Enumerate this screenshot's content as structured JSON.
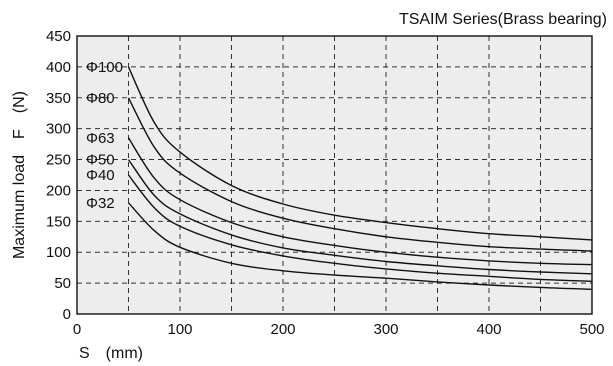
{
  "chart_data": {
    "type": "line",
    "title": "TSAIM Series(Brass bearing)",
    "xlabel": "S　(mm)",
    "ylabel": "Maximum load　F　(N)",
    "xlim": [
      0,
      500
    ],
    "ylim": [
      0,
      450
    ],
    "x_ticks": [
      "0",
      "100",
      "200",
      "300",
      "400",
      "500"
    ],
    "y_ticks": [
      "0",
      "50",
      "100",
      "150",
      "200",
      "250",
      "300",
      "350",
      "400",
      "450"
    ],
    "grid": true,
    "plot_background": "#ededed",
    "line_color": "#111111",
    "series": [
      {
        "name": "Φ100",
        "x": [
          50,
          75,
          100,
          150,
          200,
          250,
          300,
          350,
          400,
          450,
          500
        ],
        "values": [
          400,
          310,
          262,
          208,
          178,
          160,
          148,
          138,
          130,
          125,
          120
        ]
      },
      {
        "name": "Φ80",
        "x": [
          50,
          75,
          100,
          150,
          200,
          250,
          300,
          350,
          400,
          450,
          500
        ],
        "values": [
          350,
          270,
          228,
          182,
          155,
          138,
          125,
          116,
          109,
          105,
          102
        ]
      },
      {
        "name": "Φ63",
        "x": [
          50,
          75,
          100,
          150,
          200,
          250,
          300,
          350,
          400,
          450,
          500
        ],
        "values": [
          285,
          220,
          185,
          148,
          125,
          111,
          100,
          92,
          86,
          82,
          80
        ]
      },
      {
        "name": "Φ50",
        "x": [
          50,
          75,
          100,
          150,
          200,
          250,
          300,
          350,
          400,
          450,
          500
        ],
        "values": [
          250,
          192,
          162,
          128,
          107,
          95,
          85,
          78,
          72,
          68,
          65
        ]
      },
      {
        "name": "Φ40",
        "x": [
          50,
          75,
          100,
          150,
          200,
          250,
          300,
          350,
          400,
          450,
          500
        ],
        "values": [
          225,
          172,
          142,
          112,
          94,
          82,
          73,
          66,
          61,
          56,
          53
        ]
      },
      {
        "name": "Φ32",
        "x": [
          50,
          75,
          100,
          150,
          200,
          250,
          300,
          350,
          400,
          450,
          500
        ],
        "values": [
          180,
          135,
          108,
          82,
          70,
          63,
          58,
          52,
          47,
          43,
          40
        ]
      }
    ]
  }
}
